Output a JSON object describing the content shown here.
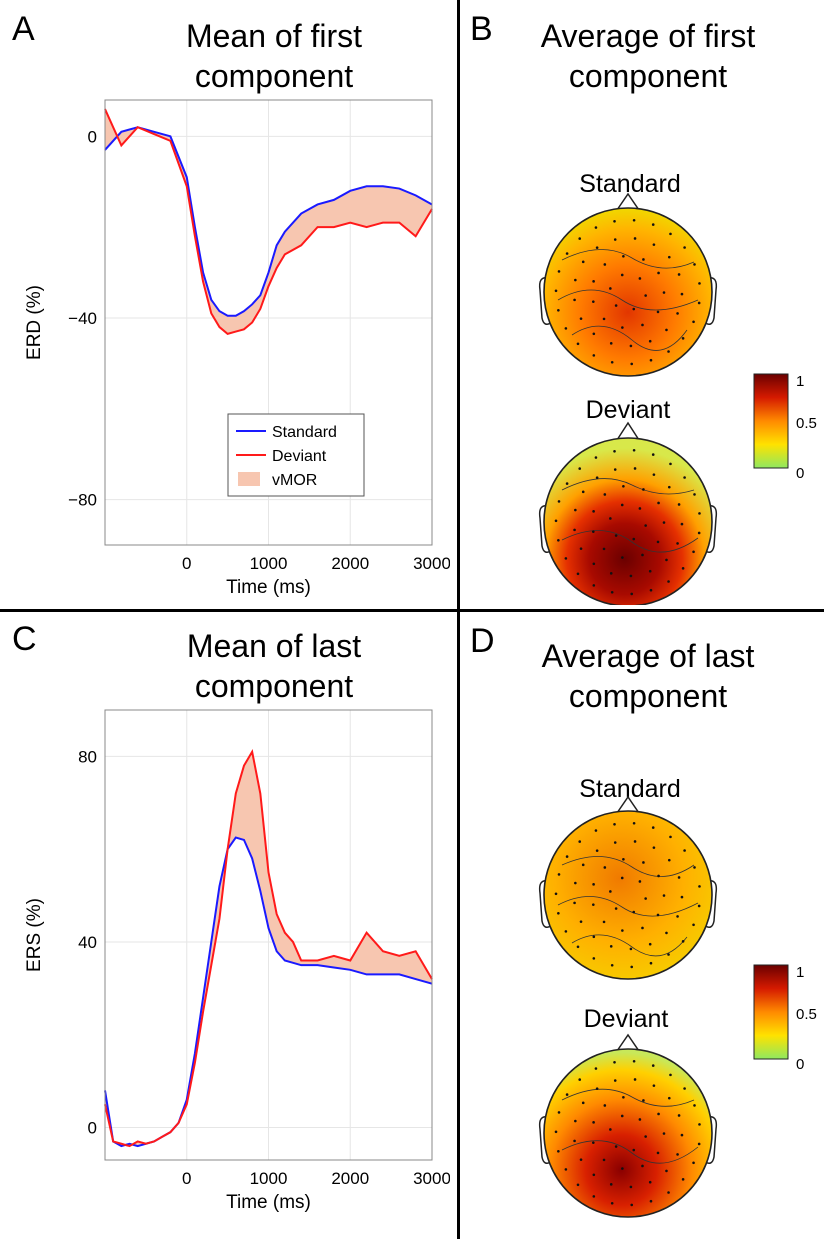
{
  "panels": {
    "A": {
      "letter": "A",
      "title_line1": "Mean of first",
      "title_line2": "component"
    },
    "B": {
      "letter": "B",
      "title_line1": "Average of first",
      "title_line2": "component",
      "map_top_label": "Standard",
      "map_bottom_label": "Deviant"
    },
    "C": {
      "letter": "C",
      "title_line1": "Mean of last",
      "title_line2": "component"
    },
    "D": {
      "letter": "D",
      "title_line1": "Average of last",
      "title_line2": "component",
      "map_top_label": "Standard",
      "map_bottom_label": "Deviant"
    }
  },
  "colorbar": {
    "ticks": [
      "1",
      "0.5",
      "0"
    ],
    "colors": [
      "#6b0000",
      "#d51a00",
      "#ff8a00",
      "#ffe200",
      "#8fe860"
    ]
  },
  "colors": {
    "standard": "#1a1aff",
    "deviant": "#ff1a1a",
    "vmor": "#f7c6b0",
    "grid": "#e6e6e6"
  },
  "chart_data": [
    {
      "type": "line",
      "panel": "A",
      "xlabel": "Time (ms)",
      "ylabel": "ERD (%)",
      "xlim": [
        -1000,
        3000
      ],
      "ylim": [
        -90,
        8
      ],
      "xticks": [
        0,
        1000,
        2000,
        3000
      ],
      "yticks": [
        0,
        -40,
        -80
      ],
      "grid": true,
      "legend": {
        "placement": "bottom-right",
        "entries": [
          "Standard",
          "Deviant",
          "vMOR"
        ]
      },
      "x": [
        -1000,
        -800,
        -600,
        -400,
        -200,
        0,
        100,
        200,
        300,
        400,
        500,
        600,
        700,
        800,
        900,
        1000,
        1100,
        1200,
        1400,
        1600,
        1800,
        2000,
        2200,
        2400,
        2600,
        2800,
        3000
      ],
      "series": [
        {
          "name": "Standard",
          "values": [
            -3,
            1,
            2,
            1,
            0,
            -9,
            -20,
            -30,
            -36,
            -38.5,
            -39.5,
            -39.5,
            -38.5,
            -37,
            -35,
            -30,
            -24,
            -21,
            -17,
            -15,
            -14,
            -12,
            -11,
            -11,
            -11.5,
            -13,
            -15
          ]
        },
        {
          "name": "Deviant",
          "values": [
            6,
            -2,
            2,
            0.5,
            -1,
            -11,
            -22,
            -32,
            -39,
            -42,
            -43.5,
            -43,
            -42.5,
            -41,
            -38,
            -33,
            -29,
            -26,
            -24,
            -20,
            -20,
            -19,
            -20,
            -19,
            -19,
            -22,
            -16
          ]
        }
      ]
    },
    {
      "type": "line",
      "panel": "C",
      "xlabel": "Time (ms)",
      "ylabel": "ERS (%)",
      "xlim": [
        -1000,
        3000
      ],
      "ylim": [
        -7,
        90
      ],
      "xticks": [
        0,
        1000,
        2000,
        3000
      ],
      "yticks": [
        80,
        40,
        0
      ],
      "grid": true,
      "x": [
        -1000,
        -900,
        -800,
        -700,
        -600,
        -500,
        -400,
        -300,
        -200,
        -100,
        0,
        100,
        200,
        300,
        400,
        500,
        600,
        700,
        800,
        900,
        1000,
        1100,
        1200,
        1300,
        1400,
        1600,
        1800,
        2000,
        2200,
        2400,
        2600,
        2800,
        3000
      ],
      "series": [
        {
          "name": "Standard",
          "values": [
            8,
            -3,
            -4,
            -3.5,
            -4,
            -3.5,
            -3,
            -2,
            -1,
            1,
            6,
            16,
            28,
            40,
            52,
            60,
            62.5,
            62,
            58,
            51,
            43,
            38,
            36,
            35.5,
            35,
            35,
            34.5,
            34,
            33,
            33,
            33,
            32,
            31
          ]
        },
        {
          "name": "Deviant",
          "values": [
            5,
            -3,
            -3.5,
            -4,
            -3,
            -3.5,
            -3,
            -2,
            -1,
            1,
            5,
            14,
            25,
            35,
            45,
            60,
            72,
            78,
            81,
            72,
            55,
            46,
            42,
            40,
            36,
            36,
            37,
            36,
            42,
            38,
            37,
            38,
            32
          ]
        }
      ]
    }
  ]
}
